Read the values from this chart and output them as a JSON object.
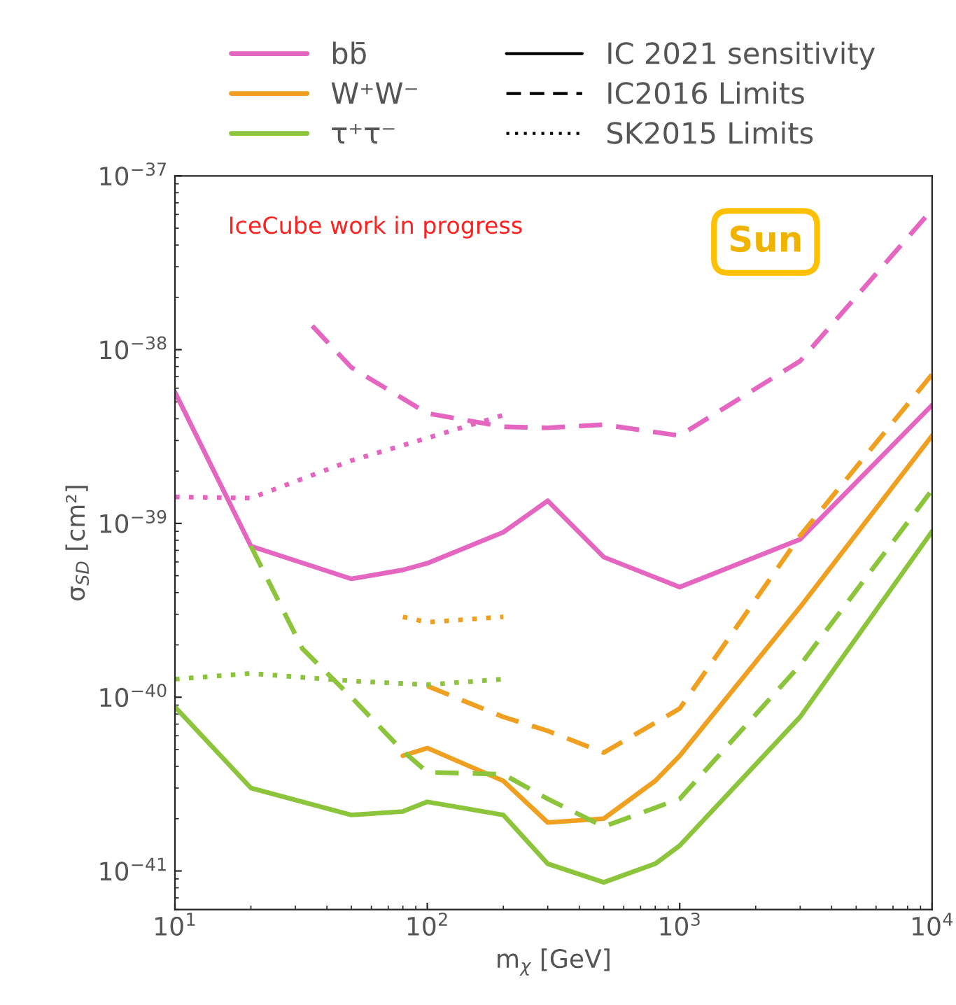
{
  "chart_data": {
    "type": "line",
    "xlabel": "m$_{χ}$ [GeV]",
    "ylabel": "σ$_{SD}$ [cm²]",
    "log": "xy",
    "grid": false,
    "legend": "top",
    "xlim": [
      10,
      10000
    ],
    "xticks": [
      {
        "value": 10,
        "label": "10$^{1}$"
      },
      {
        "value": 100,
        "label": "10$^{2}$"
      },
      {
        "value": 1000,
        "label": "10$^{3}$"
      },
      {
        "value": 10000,
        "label": "10$^{4}$"
      }
    ],
    "ylim": [
      6e-42,
      1e-37
    ],
    "yticks": [
      {
        "value": 1e-41,
        "label": "10$^{−41}$"
      },
      {
        "value": 1e-40,
        "label": "10$^{−40}$"
      },
      {
        "value": 1e-39,
        "label": "10$^{−39}$"
      },
      {
        "value": 1e-38,
        "label": "10$^{−38}$"
      },
      {
        "value": 1e-37,
        "label": "10$^{−37}$"
      }
    ],
    "annotations": [
      "IC 2021 sensitivity",
      "IC2016 Limits",
      "SK2015 Limits",
      "IceCube work in progress",
      "Sun"
    ],
    "series": [
      {
        "name": "bb̄",
        "color": "#e466c0",
        "line_style": "solid",
        "x": [
          10,
          20,
          50,
          80,
          100,
          200,
          300,
          500,
          1000,
          3000,
          10000
        ],
        "values": [
          5.7e-39,
          7.4e-40,
          4.8e-40,
          5.4e-40,
          5.9e-40,
          8.9e-40,
          1.35e-39,
          6.4e-40,
          4.3e-40,
          8.1e-40,
          4.8e-39
        ]
      },
      {
        "name": "W⁺W⁻",
        "color": "#f0a020",
        "line_style": "solid",
        "x": [
          80,
          100,
          200,
          300,
          500,
          800,
          1000,
          3000,
          10000
        ],
        "values": [
          4.6e-41,
          5.1e-41,
          3.3e-41,
          1.9e-41,
          2e-41,
          3.3e-41,
          4.6e-41,
          3.3e-40,
          3.2e-39
        ]
      },
      {
        "name": "τ⁺τ⁻",
        "color": "#8cc43c",
        "line_style": "solid",
        "x": [
          10,
          20,
          50,
          80,
          100,
          200,
          300,
          500,
          800,
          1000,
          3000,
          10000
        ],
        "values": [
          8.8e-41,
          3e-41,
          2.1e-41,
          2.2e-41,
          2.5e-41,
          2.1e-41,
          1.1e-41,
          8.6e-42,
          1.1e-41,
          1.4e-41,
          7.7e-41,
          9e-40
        ]
      },
      {
        "color": "#e466c0",
        "line_style": "dashed",
        "x": [
          35,
          50,
          100,
          200,
          300,
          500,
          1000,
          3000,
          10000
        ],
        "values": [
          1.37e-38,
          7.9e-39,
          4.3e-39,
          3.6e-39,
          3.55e-39,
          3.7e-39,
          3.2e-39,
          8.6e-39,
          6.4e-38
        ]
      },
      {
        "color": "#f0a020",
        "line_style": "dashed",
        "x": [
          100,
          200,
          300,
          500,
          1000,
          3000,
          10000
        ],
        "values": [
          1.16e-40,
          7.7e-41,
          6.4e-41,
          4.8e-41,
          8.6e-41,
          8.5e-40,
          7.2e-39
        ]
      },
      {
        "color": "#8cc43c",
        "line_style": "dashed",
        "x": [
          20,
          32,
          50,
          80,
          100,
          200,
          300,
          500,
          1000,
          3000,
          10000
        ],
        "values": [
          7.4e-40,
          1.9e-40,
          1e-40,
          4.9e-41,
          3.7e-41,
          3.6e-41,
          2.6e-41,
          1.8e-41,
          2.6e-41,
          1.53e-40,
          1.56e-39
        ]
      },
      {
        "color": "#e466c0",
        "line_style": "dotted",
        "x": [
          10,
          20,
          50,
          100,
          200
        ],
        "values": [
          1.42e-39,
          1.4e-39,
          2.3e-39,
          3.1e-39,
          4.2e-39
        ]
      },
      {
        "color": "#f0a020",
        "line_style": "dotted",
        "x": [
          80,
          100,
          200
        ],
        "values": [
          2.9e-40,
          2.7e-40,
          2.9e-40
        ]
      },
      {
        "color": "#8cc43c",
        "line_style": "dotted",
        "x": [
          10,
          20,
          50,
          100,
          200
        ],
        "values": [
          1.27e-40,
          1.37e-40,
          1.24e-40,
          1.18e-40,
          1.27e-40
        ]
      }
    ]
  }
}
